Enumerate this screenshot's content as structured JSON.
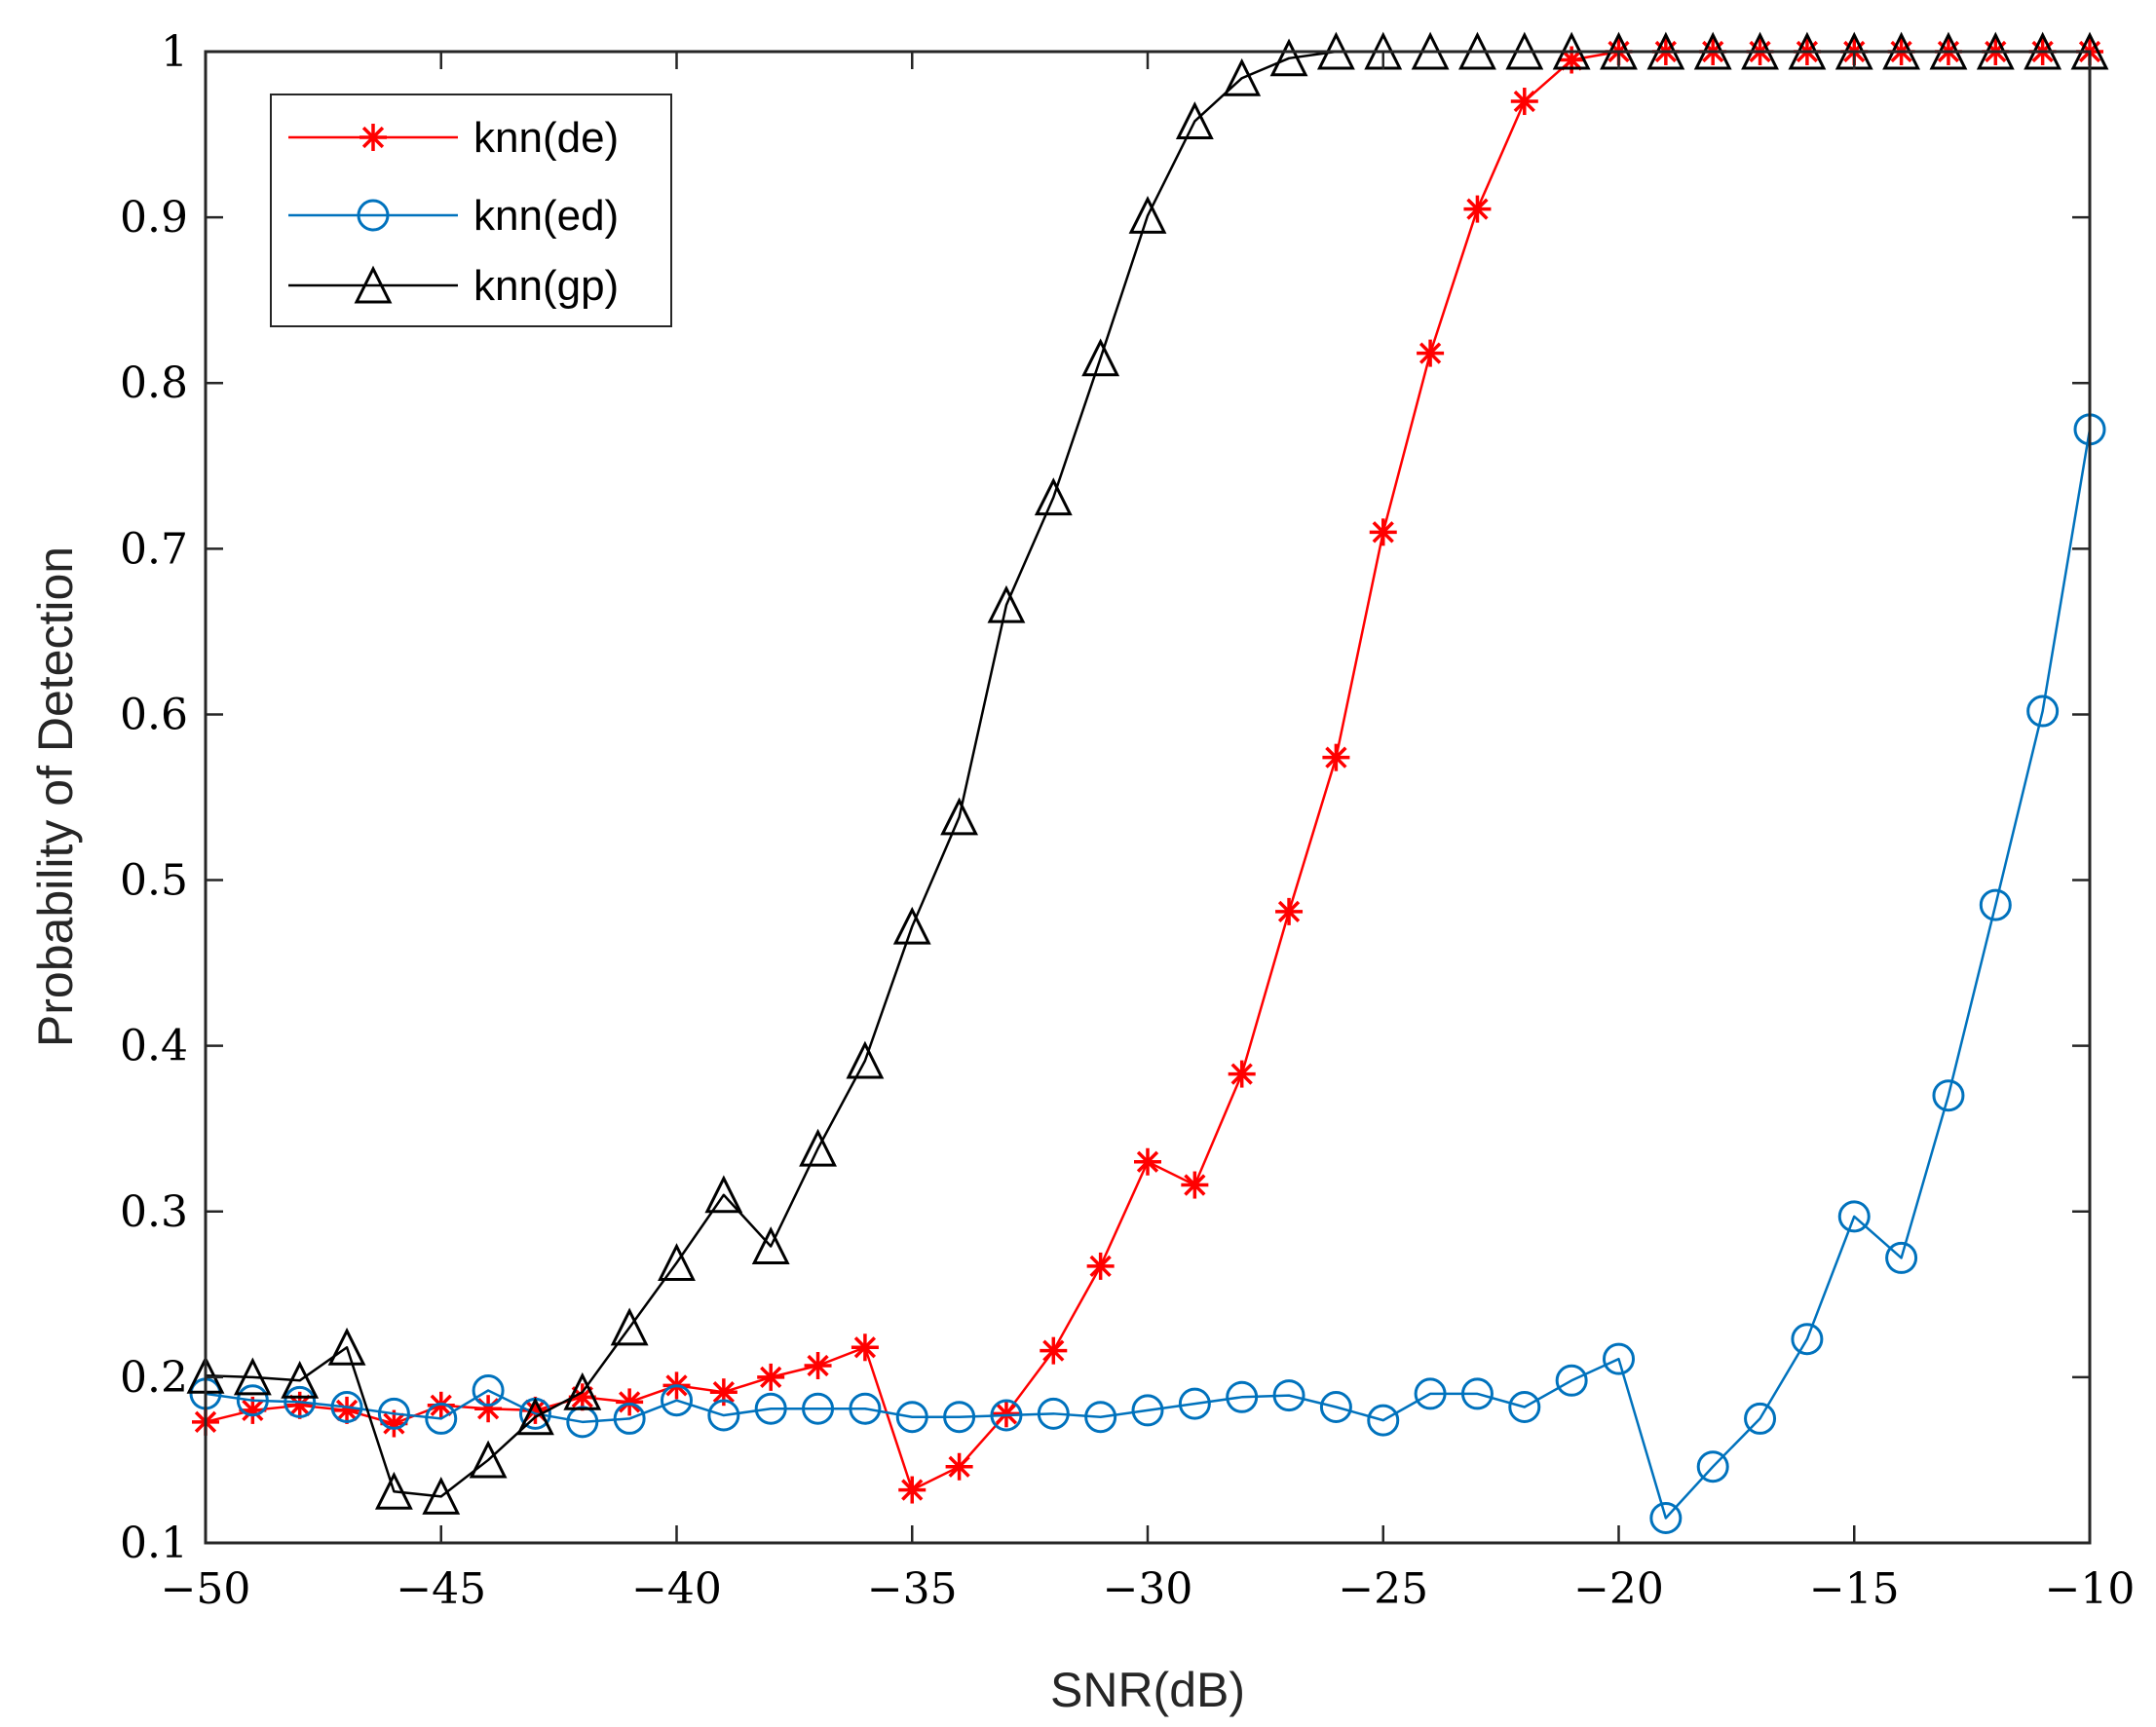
{
  "chart_data": {
    "type": "line",
    "title": "",
    "xlabel": "SNR(dB)",
    "ylabel": "Probability of Detection",
    "xlim": [
      -50,
      -10
    ],
    "ylim": [
      0.1,
      1
    ],
    "xticks": [
      -50,
      -45,
      -40,
      -35,
      -30,
      -25,
      -20,
      -15,
      -10
    ],
    "xtick_labels": [
      "−50",
      "−45",
      "−40",
      "−35",
      "−30",
      "−25",
      "−20",
      "−15",
      "−10"
    ],
    "yticks": [
      0.1,
      0.2,
      0.3,
      0.4,
      0.5,
      0.6,
      0.7,
      0.8,
      0.9,
      1
    ],
    "ytick_labels": [
      "0.1",
      "0.2",
      "0.3",
      "0.4",
      "0.5",
      "0.6",
      "0.7",
      "0.8",
      "0.9",
      "1"
    ],
    "grid": false,
    "legend_position": "top-left",
    "x": [
      -50,
      -49,
      -48,
      -47,
      -46,
      -45,
      -44,
      -43,
      -42,
      -41,
      -40,
      -39,
      -38,
      -37,
      -36,
      -35,
      -34,
      -33,
      -32,
      -31,
      -30,
      -29,
      -28,
      -27,
      -26,
      -25,
      -24,
      -23,
      -22,
      -21,
      -20,
      -19,
      -18,
      -17,
      -16,
      -15,
      -14,
      -13,
      -12,
      -11,
      -10
    ],
    "series": [
      {
        "name": "knn(de)",
        "color": "#ff0000",
        "marker": "asterisk",
        "values": [
          0.173,
          0.18,
          0.183,
          0.18,
          0.172,
          0.183,
          0.181,
          0.18,
          0.188,
          0.185,
          0.195,
          0.191,
          0.2,
          0.207,
          0.218,
          0.132,
          0.146,
          0.178,
          0.216,
          0.267,
          0.33,
          0.316,
          0.383,
          0.481,
          0.574,
          0.71,
          0.818,
          0.905,
          0.97,
          0.995,
          1.0,
          1.0,
          1.0,
          1.0,
          1.0,
          1.0,
          1.0,
          1.0,
          1.0,
          1.0,
          1.0
        ]
      },
      {
        "name": "knn(ed)",
        "color": "#0072bd",
        "marker": "circle",
        "values": [
          0.19,
          0.186,
          0.185,
          0.182,
          0.178,
          0.175,
          0.192,
          0.178,
          0.173,
          0.175,
          0.186,
          0.177,
          0.181,
          0.181,
          0.181,
          0.176,
          0.176,
          0.177,
          0.178,
          0.176,
          0.18,
          0.184,
          0.188,
          0.189,
          0.182,
          0.174,
          0.19,
          0.19,
          0.182,
          0.198,
          0.211,
          0.115,
          0.146,
          0.175,
          0.223,
          0.297,
          0.272,
          0.37,
          0.485,
          0.602,
          0.772
        ]
      },
      {
        "name": "knn(gp)",
        "color": "#000000",
        "marker": "triangle",
        "values": [
          0.201,
          0.2,
          0.198,
          0.218,
          0.131,
          0.128,
          0.15,
          0.176,
          0.191,
          0.23,
          0.269,
          0.31,
          0.279,
          0.338,
          0.391,
          0.472,
          0.538,
          0.666,
          0.731,
          0.815,
          0.901,
          0.958,
          0.984,
          0.996,
          1.0,
          1.0,
          1.0,
          1.0,
          1.0,
          1.0,
          1.0,
          1.0,
          1.0,
          1.0,
          1.0,
          1.0,
          1.0,
          1.0,
          1.0,
          1.0,
          1.0
        ]
      }
    ]
  }
}
